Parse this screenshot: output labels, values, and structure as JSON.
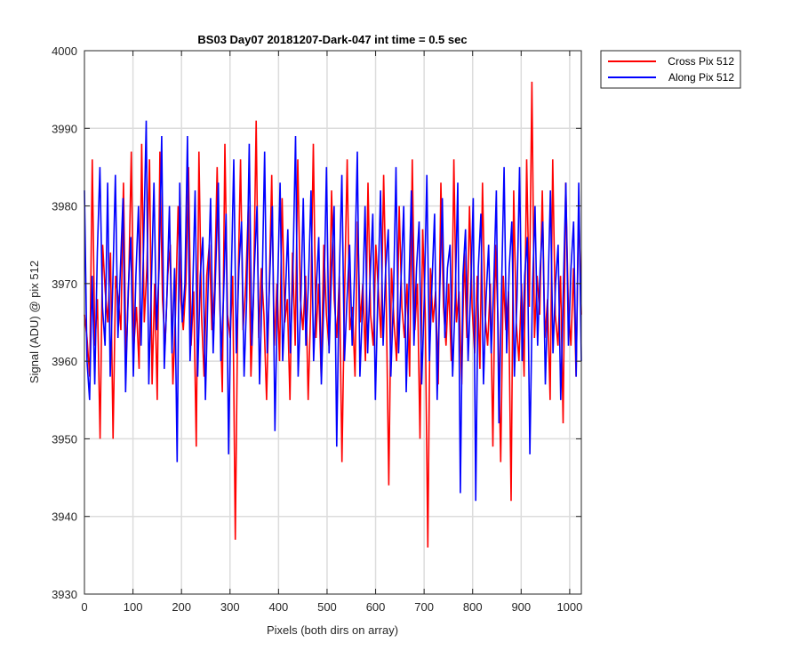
{
  "chart_data": {
    "type": "line",
    "title": "BS03 Day07 20181207-Dark-047 int time = 0.5 sec",
    "xlabel": "Pixels (both dirs on array)",
    "ylabel": "Signal (ADU) @ pix 512",
    "xlim": [
      0,
      1024
    ],
    "ylim": [
      3930,
      4000
    ],
    "xticks": [
      0,
      100,
      200,
      300,
      400,
      500,
      600,
      700,
      800,
      900,
      1000
    ],
    "yticks": [
      3930,
      3940,
      3950,
      3960,
      3970,
      3980,
      3990,
      4000
    ],
    "grid": true,
    "legend_position": "outside-top-right",
    "series": [
      {
        "name": "Cross Pix 512",
        "color": "#ff0000",
        "values": [
          3966,
          3963,
          3958,
          3986,
          3962,
          3968,
          3950,
          3975,
          3969,
          3965,
          3974,
          3950,
          3971,
          3968,
          3964,
          3983,
          3960,
          3970,
          3987,
          3962,
          3967,
          3959,
          3988,
          3965,
          3972,
          3986,
          3957,
          3970,
          3955,
          3987,
          3968,
          3962,
          3971,
          3975,
          3957,
          3966,
          3980,
          3968,
          3964,
          3970,
          3985,
          3962,
          3969,
          3949,
          3987,
          3966,
          3958,
          3971,
          3975,
          3964,
          3969,
          3985,
          3968,
          3956,
          3988,
          3966,
          3963,
          3971,
          3937,
          3969,
          3986,
          3964,
          3970,
          3980,
          3958,
          3968,
          3991,
          3963,
          3972,
          3966,
          3955,
          3969,
          3984,
          3962,
          3970,
          3960,
          3981,
          3965,
          3968,
          3955,
          3974,
          3962,
          3986,
          3968,
          3964,
          3971,
          3955,
          3967,
          3988,
          3963,
          3970,
          3958,
          3975,
          3966,
          3962,
          3982,
          3968,
          3963,
          3971,
          3947,
          3969,
          3986,
          3964,
          3967,
          3958,
          3978,
          3965,
          3970,
          3960,
          3983,
          3966,
          3962,
          3975,
          3969,
          3963,
          3984,
          3968,
          3944,
          3972,
          3965,
          3960,
          3980,
          3967,
          3963,
          3970,
          3958,
          3986,
          3964,
          3970,
          3950,
          3977,
          3966,
          3936,
          3972,
          3965,
          3969,
          3957,
          3983,
          3967,
          3962,
          3970,
          3960,
          3986,
          3965,
          3969,
          3957,
          3974,
          3963,
          3980,
          3967,
          3961,
          3971,
          3959,
          3983,
          3966,
          3962,
          3970,
          3949,
          3975,
          3965,
          3947,
          3971,
          3964,
          3969,
          3942,
          3982,
          3965,
          3960,
          3970,
          3958,
          3986,
          3967,
          3996,
          3963,
          3971,
          3966,
          3982,
          3963,
          3968,
          3955,
          3986,
          3966,
          3962,
          3971,
          3952,
          3983,
          3967,
          3962,
          3972,
          3958,
          3980,
          3966
        ]
      },
      {
        "name": "Along Pix 512",
        "color": "#0000ff",
        "values": [
          3982,
          3960,
          3955,
          3971,
          3957,
          3974,
          3985,
          3967,
          3962,
          3983,
          3958,
          3970,
          3984,
          3963,
          3972,
          3981,
          3956,
          3969,
          3976,
          3958,
          3971,
          3980,
          3962,
          3975,
          3991,
          3957,
          3970,
          3983,
          3964,
          3972,
          3989,
          3959,
          3968,
          3980,
          3961,
          3972,
          3947,
          3983,
          3965,
          3970,
          3989,
          3960,
          3968,
          3982,
          3958,
          3971,
          3976,
          3955,
          3969,
          3981,
          3961,
          3972,
          3983,
          3960,
          3968,
          3979,
          3948,
          3970,
          3986,
          3961,
          3972,
          3978,
          3958,
          3968,
          3988,
          3962,
          3972,
          3980,
          3957,
          3969,
          3987,
          3961,
          3971,
          3980,
          3951,
          3969,
          3983,
          3960,
          3968,
          3977,
          3961,
          3972,
          3989,
          3958,
          3967,
          3981,
          3962,
          3970,
          3982,
          3960,
          3969,
          3976,
          3957,
          3968,
          3985,
          3961,
          3972,
          3980,
          3949,
          3971,
          3984,
          3960,
          3968,
          3975,
          3962,
          3972,
          3987,
          3958,
          3967,
          3980,
          3961,
          3971,
          3979,
          3955,
          3969,
          3982,
          3962,
          3972,
          3977,
          3958,
          3968,
          3985,
          3961,
          3971,
          3980,
          3956,
          3969,
          3982,
          3962,
          3972,
          3978,
          3957,
          3968,
          3984,
          3960,
          3970,
          3979,
          3955,
          3969,
          3981,
          3963,
          3972,
          3975,
          3958,
          3968,
          3983,
          3943,
          3971,
          3977,
          3960,
          3969,
          3981,
          3942,
          3972,
          3979,
          3957,
          3968,
          3975,
          3961,
          3970,
          3982,
          3952,
          3969,
          3985,
          3961,
          3972,
          3978,
          3958,
          3968,
          3985,
          3960,
          3971,
          3976,
          3948,
          3969,
          3980,
          3962,
          3972,
          3978,
          3957,
          3968,
          3982,
          3961,
          3970,
          3975,
          3955,
          3969,
          3983,
          3962,
          3972,
          3978,
          3958,
          3983,
          3960
        ]
      }
    ]
  }
}
